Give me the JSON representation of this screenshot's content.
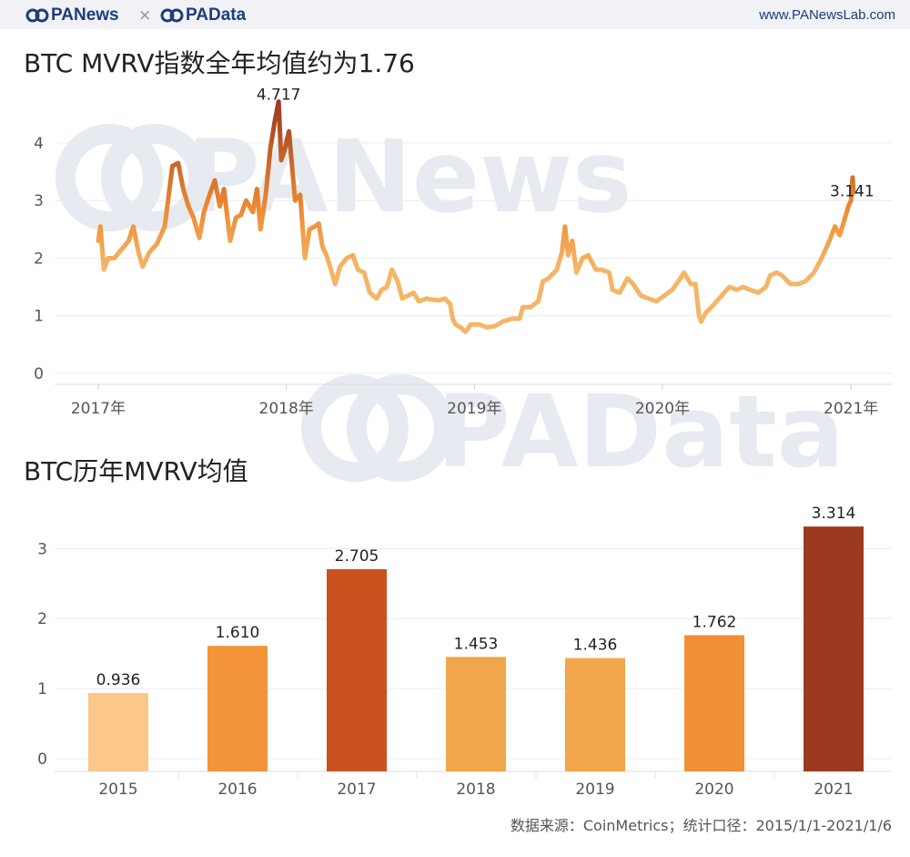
{
  "header": {
    "brand_left": "PANews",
    "separator": "×",
    "brand_right": "PAData",
    "website": "www.PANewsLab.com"
  },
  "watermarks": [
    "PANews",
    "PAData"
  ],
  "colors": {
    "line_low": "#f5b566",
    "line_mid": "#ee8a32",
    "line_high": "#9c3a1f",
    "bar_2015": "#fcc889",
    "bar_2016": "#f3943a",
    "bar_2017": "#c9521f",
    "bar_2018": "#f2a64b",
    "bar_2019": "#f2a64b",
    "bar_2020": "#f08f35",
    "bar_2021": "#9c3a1f"
  },
  "chart_data": [
    {
      "type": "line",
      "title": "BTC MVRV指数全年均值约为1.76",
      "x_ticks": [
        "2017年",
        "2018年",
        "2019年",
        "2020年",
        "2021年"
      ],
      "y_ticks": [
        "0",
        "1",
        "2",
        "3",
        "4"
      ],
      "ylim": [
        0,
        4.9
      ],
      "xlim": [
        "2017-01-01",
        "2021-01-06"
      ],
      "annotations": [
        {
          "date": "2017-12-17",
          "value": 4.717,
          "text": "4.717"
        },
        {
          "date": "2021-01-06",
          "value": 3.141,
          "text": "3.141"
        }
      ],
      "series": [
        {
          "points": [
            [
              "2017-01-01",
              2.3
            ],
            [
              "2017-01-05",
              2.55
            ],
            [
              "2017-01-12",
              1.8
            ],
            [
              "2017-01-20",
              2.0
            ],
            [
              "2017-02-01",
              2.0
            ],
            [
              "2017-02-15",
              2.15
            ],
            [
              "2017-03-01",
              2.3
            ],
            [
              "2017-03-10",
              2.55
            ],
            [
              "2017-03-20",
              2.1
            ],
            [
              "2017-03-28",
              1.85
            ],
            [
              "2017-04-10",
              2.1
            ],
            [
              "2017-04-25",
              2.25
            ],
            [
              "2017-05-10",
              2.55
            ],
            [
              "2017-05-25",
              3.6
            ],
            [
              "2017-06-05",
              3.65
            ],
            [
              "2017-06-15",
              3.2
            ],
            [
              "2017-06-25",
              2.9
            ],
            [
              "2017-07-05",
              2.7
            ],
            [
              "2017-07-16",
              2.35
            ],
            [
              "2017-07-25",
              2.8
            ],
            [
              "2017-08-05",
              3.1
            ],
            [
              "2017-08-15",
              3.35
            ],
            [
              "2017-08-25",
              2.9
            ],
            [
              "2017-09-02",
              3.2
            ],
            [
              "2017-09-14",
              2.3
            ],
            [
              "2017-09-25",
              2.7
            ],
            [
              "2017-10-05",
              2.75
            ],
            [
              "2017-10-15",
              3.0
            ],
            [
              "2017-10-28",
              2.8
            ],
            [
              "2017-11-05",
              3.2
            ],
            [
              "2017-11-12",
              2.5
            ],
            [
              "2017-11-22",
              3.1
            ],
            [
              "2017-12-01",
              3.9
            ],
            [
              "2017-12-10",
              4.4
            ],
            [
              "2017-12-17",
              4.717
            ],
            [
              "2017-12-22",
              3.7
            ],
            [
              "2017-12-28",
              3.85
            ],
            [
              "2018-01-06",
              4.2
            ],
            [
              "2018-01-12",
              3.6
            ],
            [
              "2018-01-18",
              3.0
            ],
            [
              "2018-01-28",
              3.1
            ],
            [
              "2018-02-06",
              2.0
            ],
            [
              "2018-02-15",
              2.5
            ],
            [
              "2018-02-25",
              2.55
            ],
            [
              "2018-03-05",
              2.6
            ],
            [
              "2018-03-12",
              2.2
            ],
            [
              "2018-03-20",
              2.05
            ],
            [
              "2018-04-01",
              1.7
            ],
            [
              "2018-04-06",
              1.55
            ],
            [
              "2018-04-15",
              1.85
            ],
            [
              "2018-04-28",
              2.0
            ],
            [
              "2018-05-10",
              2.05
            ],
            [
              "2018-05-20",
              1.8
            ],
            [
              "2018-06-01",
              1.75
            ],
            [
              "2018-06-12",
              1.4
            ],
            [
              "2018-06-25",
              1.3
            ],
            [
              "2018-07-05",
              1.45
            ],
            [
              "2018-07-15",
              1.5
            ],
            [
              "2018-07-25",
              1.8
            ],
            [
              "2018-08-05",
              1.6
            ],
            [
              "2018-08-14",
              1.3
            ],
            [
              "2018-08-25",
              1.35
            ],
            [
              "2018-09-05",
              1.4
            ],
            [
              "2018-09-15",
              1.25
            ],
            [
              "2018-09-30",
              1.3
            ],
            [
              "2018-10-10",
              1.28
            ],
            [
              "2018-10-25",
              1.27
            ],
            [
              "2018-11-05",
              1.3
            ],
            [
              "2018-11-15",
              1.2
            ],
            [
              "2018-11-20",
              0.95
            ],
            [
              "2018-11-25",
              0.85
            ],
            [
              "2018-12-05",
              0.8
            ],
            [
              "2018-12-15",
              0.72
            ],
            [
              "2018-12-25",
              0.85
            ],
            [
              "2019-01-10",
              0.85
            ],
            [
              "2019-01-25",
              0.8
            ],
            [
              "2019-02-10",
              0.82
            ],
            [
              "2019-02-25",
              0.9
            ],
            [
              "2019-03-15",
              0.95
            ],
            [
              "2019-03-30",
              0.95
            ],
            [
              "2019-04-05",
              1.15
            ],
            [
              "2019-04-20",
              1.15
            ],
            [
              "2019-05-05",
              1.25
            ],
            [
              "2019-05-14",
              1.6
            ],
            [
              "2019-05-25",
              1.65
            ],
            [
              "2019-06-10",
              1.8
            ],
            [
              "2019-06-20",
              2.1
            ],
            [
              "2019-06-26",
              2.55
            ],
            [
              "2019-07-02",
              2.05
            ],
            [
              "2019-07-10",
              2.3
            ],
            [
              "2019-07-18",
              1.75
            ],
            [
              "2019-07-30",
              2.0
            ],
            [
              "2019-08-10",
              2.05
            ],
            [
              "2019-08-25",
              1.8
            ],
            [
              "2019-09-05",
              1.8
            ],
            [
              "2019-09-20",
              1.75
            ],
            [
              "2019-09-26",
              1.45
            ],
            [
              "2019-10-10",
              1.4
            ],
            [
              "2019-10-25",
              1.65
            ],
            [
              "2019-11-05",
              1.55
            ],
            [
              "2019-11-20",
              1.35
            ],
            [
              "2019-12-05",
              1.3
            ],
            [
              "2019-12-20",
              1.25
            ],
            [
              "2020-01-05",
              1.35
            ],
            [
              "2020-01-20",
              1.45
            ],
            [
              "2020-02-01",
              1.6
            ],
            [
              "2020-02-12",
              1.75
            ],
            [
              "2020-02-25",
              1.55
            ],
            [
              "2020-03-05",
              1.55
            ],
            [
              "2020-03-12",
              1.0
            ],
            [
              "2020-03-16",
              0.9
            ],
            [
              "2020-03-25",
              1.05
            ],
            [
              "2020-04-10",
              1.2
            ],
            [
              "2020-04-30",
              1.4
            ],
            [
              "2020-05-10",
              1.5
            ],
            [
              "2020-05-25",
              1.45
            ],
            [
              "2020-06-05",
              1.5
            ],
            [
              "2020-06-20",
              1.45
            ],
            [
              "2020-07-05",
              1.4
            ],
            [
              "2020-07-20",
              1.5
            ],
            [
              "2020-07-28",
              1.7
            ],
            [
              "2020-08-10",
              1.75
            ],
            [
              "2020-08-20",
              1.7
            ],
            [
              "2020-09-05",
              1.55
            ],
            [
              "2020-09-20",
              1.55
            ],
            [
              "2020-10-05",
              1.6
            ],
            [
              "2020-10-21",
              1.75
            ],
            [
              "2020-11-05",
              2.0
            ],
            [
              "2020-11-20",
              2.3
            ],
            [
              "2020-12-01",
              2.55
            ],
            [
              "2020-12-10",
              2.4
            ],
            [
              "2020-12-17",
              2.6
            ],
            [
              "2020-12-27",
              2.9
            ],
            [
              "2021-01-01",
              3.0
            ],
            [
              "2021-01-04",
              3.4
            ],
            [
              "2021-01-06",
              3.141
            ]
          ]
        }
      ]
    },
    {
      "type": "bar",
      "title": "BTC历年MVRV均值",
      "categories": [
        "2015",
        "2016",
        "2017",
        "2018",
        "2019",
        "2020",
        "2021"
      ],
      "values": [
        0.936,
        1.61,
        2.705,
        1.453,
        1.436,
        1.762,
        3.314
      ],
      "labels": [
        "0.936",
        "1.610",
        "2.705",
        "1.453",
        "1.436",
        "1.762",
        "3.314"
      ],
      "y_ticks": [
        "0",
        "1",
        "2",
        "3"
      ],
      "ylim": [
        0,
        3.55
      ]
    }
  ],
  "source_note": "数据来源：CoinMetrics；统计口径：2015/1/1-2021/1/6"
}
